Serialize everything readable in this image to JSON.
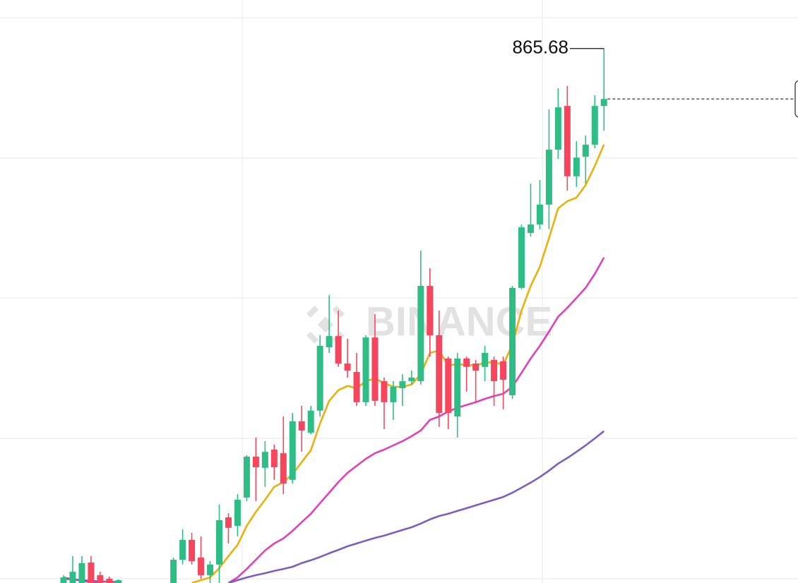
{
  "chart_data": {
    "type": "candlestick",
    "watermark": "BINANCE",
    "ylim": [
      675,
      883
    ],
    "up_color": "#2ebd85",
    "down_color": "#f6465d",
    "open": [
      675.0,
      675.0,
      675.0,
      682.3,
      677.8,
      676.5,
      675.0,
      null,
      null,
      null,
      null,
      null,
      675.0,
      683.3,
      690.4,
      684.1,
      677.8,
      681.6,
      698.4,
      695.4,
      705.5,
      720.1,
      716.1,
      722.6,
      721.3,
      711.8,
      732.7,
      728.6,
      736.5,
      759.1,
      763.1,
      753.3,
      750.3,
      739.5,
      762.6,
      747.0,
      739.5,
      744.5,
      747.0,
      747.0,
      781.0,
      763.4,
      755.1,
      734.4,
      755.1,
      753.3,
      752.1,
      754.6,
      754.1,
      742.0,
      780.3,
      799.9,
      802.9,
      810.0,
      829.6,
      845.2,
      820.1,
      827.1,
      831.4,
      845.2
    ],
    "high": [
      677.8,
      684.6,
      684.6,
      684.6,
      679.0,
      677.3,
      676.3,
      null,
      null,
      null,
      null,
      null,
      684.1,
      694.2,
      692.9,
      691.6,
      682.8,
      703.0,
      699.9,
      706.7,
      720.6,
      726.9,
      725.6,
      724.4,
      734.4,
      735.7,
      738.2,
      738.2,
      763.4,
      777.7,
      772.2,
      762.1,
      757.1,
      763.4,
      770.9,
      748.3,
      747.0,
      749.5,
      750.8,
      793.6,
      787.3,
      772.2,
      755.8,
      757.1,
      755.8,
      754.6,
      759.6,
      755.8,
      755.8,
      781.0,
      802.9,
      817.5,
      818.8,
      844.0,
      851.5,
      852.3,
      832.6,
      834.7,
      849.0,
      865.68
    ],
    "low": [
      675.0,
      675.0,
      675.0,
      675.0,
      675.0,
      675.0,
      675.0,
      null,
      null,
      null,
      null,
      null,
      675.0,
      681.6,
      681.6,
      676.5,
      675.0,
      675.0,
      689.1,
      691.6,
      704.2,
      704.2,
      709.3,
      711.8,
      706.7,
      710.5,
      721.8,
      728.1,
      734.4,
      757.1,
      752.1,
      748.3,
      738.2,
      738.2,
      738.2,
      729.9,
      733.2,
      738.2,
      745.8,
      745.8,
      755.8,
      730.7,
      729.9,
      726.9,
      743.3,
      739.5,
      747.0,
      738.2,
      737.0,
      740.7,
      779.8,
      798.6,
      801.2,
      801.2,
      826.3,
      815.0,
      816.3,
      817.5,
      830.1,
      836.4
    ],
    "close": [
      677.0,
      679.0,
      682.1,
      675.0,
      675.0,
      675.0,
      676.0,
      null,
      null,
      null,
      null,
      null,
      683.3,
      690.4,
      682.8,
      677.8,
      681.6,
      697.4,
      694.7,
      704.7,
      720.1,
      716.3,
      721.8,
      716.3,
      710.5,
      732.7,
      729.4,
      736.5,
      759.6,
      763.1,
      753.3,
      750.8,
      739.5,
      762.6,
      740.0,
      739.5,
      745.0,
      747.0,
      748.3,
      781.0,
      763.4,
      735.7,
      735.7,
      755.1,
      752.1,
      750.8,
      757.1,
      747.0,
      747.5,
      780.3,
      801.9,
      802.9,
      810.0,
      829.6,
      844.7,
      820.1,
      826.8,
      831.4,
      845.2,
      847.7
    ],
    "series": [
      {
        "color": "#e8b10e",
        "values": [
          null,
          null,
          null,
          null,
          null,
          null,
          null,
          null,
          null,
          null,
          null,
          null,
          null,
          null,
          675.0,
          676.0,
          677.0,
          680.3,
          684.6,
          688.6,
          695.4,
          700.4,
          704.7,
          709.3,
          711.0,
          713.8,
          718.1,
          722.4,
          731.9,
          740.0,
          743.8,
          745.3,
          744.5,
          747.0,
          748.0,
          746.3,
          745.0,
          745.0,
          745.8,
          749.5,
          757.1,
          757.9,
          752.6,
          753.1,
          752.8,
          752.6,
          753.6,
          753.8,
          752.8,
          760.1,
          772.2,
          781.0,
          787.8,
          798.1,
          808.7,
          811.2,
          812.5,
          817.0,
          823.8,
          831.4
        ]
      },
      {
        "color": "#e040b8",
        "values": [
          677.0,
          676.3,
          675.8,
          675.3,
          675.0,
          null,
          null,
          null,
          null,
          null,
          null,
          null,
          null,
          null,
          null,
          null,
          null,
          null,
          675.0,
          677.0,
          680.0,
          683.3,
          686.6,
          689.1,
          690.9,
          693.6,
          696.7,
          699.7,
          703.5,
          707.2,
          711.0,
          714.3,
          716.8,
          719.3,
          721.3,
          722.6,
          724.1,
          725.6,
          727.4,
          729.4,
          733.2,
          734.4,
          736.2,
          737.5,
          738.5,
          739.5,
          740.7,
          741.7,
          742.5,
          745.0,
          750.0,
          755.1,
          759.6,
          764.7,
          770.0,
          773.2,
          776.7,
          780.3,
          785.3,
          791.1
        ]
      },
      {
        "color": "#7e5cc0",
        "values": [
          676.5,
          676.3,
          676.0,
          675.8,
          675.5,
          675.5,
          675.3,
          null,
          null,
          null,
          null,
          null,
          null,
          null,
          null,
          null,
          null,
          null,
          675.0,
          676.0,
          677.0,
          677.8,
          678.5,
          679.3,
          680.0,
          680.8,
          682.1,
          683.1,
          684.3,
          685.6,
          686.8,
          688.1,
          689.1,
          690.1,
          691.1,
          691.9,
          692.9,
          693.9,
          694.9,
          696.2,
          697.7,
          698.9,
          699.7,
          700.7,
          701.7,
          702.7,
          703.7,
          704.7,
          705.7,
          707.2,
          709.0,
          710.8,
          712.8,
          715.1,
          717.6,
          719.6,
          721.8,
          724.1,
          726.6,
          729.2
        ]
      }
    ]
  }
}
